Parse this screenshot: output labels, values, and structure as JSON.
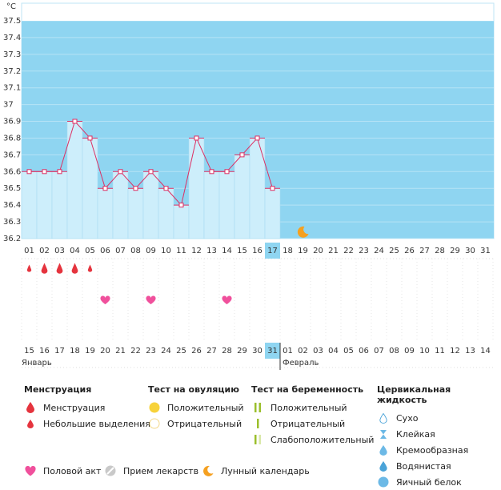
{
  "chart_data": {
    "type": "line",
    "unit_label": "°C",
    "y_ticks": [
      "36.2",
      "36.3",
      "36.4",
      "36.5",
      "36.6",
      "36.7",
      "36.8",
      "36.9",
      "37",
      "37.1",
      "37.2",
      "37.3",
      "37.4",
      "37.5"
    ],
    "ylim": [
      36.2,
      37.5
    ],
    "days": [
      "01",
      "02",
      "03",
      "04",
      "05",
      "06",
      "07",
      "08",
      "09",
      "10",
      "11",
      "12",
      "13",
      "14",
      "15",
      "16",
      "17",
      "18",
      "19",
      "20",
      "21",
      "22",
      "23",
      "24",
      "25",
      "26",
      "27",
      "28",
      "29",
      "30",
      "31"
    ],
    "temperatures": [
      36.6,
      36.6,
      36.6,
      36.9,
      36.8,
      36.5,
      36.6,
      36.5,
      36.6,
      36.5,
      36.4,
      36.8,
      36.6,
      36.6,
      36.7,
      36.8,
      36.5
    ],
    "current_day_index": 16,
    "moon_day_index": 18,
    "menstruation": [
      {
        "day": 0,
        "level": "light"
      },
      {
        "day": 1,
        "level": "heavy"
      },
      {
        "day": 2,
        "level": "heavy"
      },
      {
        "day": 3,
        "level": "heavy"
      },
      {
        "day": 4,
        "level": "light"
      }
    ],
    "intercourse_days": [
      5,
      8,
      13
    ],
    "dates": [
      "15",
      "16",
      "17",
      "18",
      "19",
      "20",
      "21",
      "22",
      "23",
      "24",
      "25",
      "26",
      "27",
      "28",
      "29",
      "30",
      "31",
      "01",
      "02",
      "03",
      "04",
      "05",
      "06",
      "07",
      "08",
      "09",
      "10",
      "11",
      "12",
      "13",
      "14"
    ],
    "red_date_indices": [
      3,
      4,
      10,
      11,
      17,
      18,
      24,
      25
    ],
    "months": [
      {
        "label": "Январь",
        "start_index": 0
      },
      {
        "label": "Февраль",
        "start_index": 17
      }
    ],
    "colors": {
      "plot_bg": "#8fd5f1",
      "bar": "#cdeefb",
      "bar_edge": "#a9dcf2",
      "line": "#dd2f63",
      "highlight": "#8fd5f1",
      "drop": "#e5343e",
      "heart": "#f0509c",
      "moon": "#f5a020",
      "red_text": "#d9315a"
    }
  },
  "legend": {
    "menstruation": {
      "title": "Менструация",
      "items": [
        "Менструация",
        "Небольшие выделения"
      ]
    },
    "ovulation": {
      "title": "Тест на овуляцию",
      "items": [
        "Положительный",
        "Отрицательный"
      ]
    },
    "pregnancy": {
      "title": "Тест на беременность",
      "items": [
        "Положительный",
        "Отрицательный",
        "Слабоположительный"
      ]
    },
    "cervical": {
      "title": "Цервикальная жидкость",
      "items": [
        "Сухо",
        "Клейкая",
        "Кремообразная",
        "Водянистая",
        "Яичный белок"
      ]
    },
    "bottom": [
      "Половой акт",
      "Прием лекарств",
      "Лунный календарь"
    ]
  }
}
